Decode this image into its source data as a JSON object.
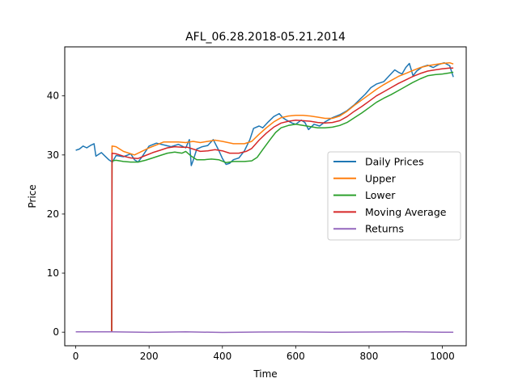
{
  "chart_data": {
    "type": "line",
    "title": "AFL_06.28.2018-05.21.2014",
    "xlabel": "Time",
    "ylabel": "Price",
    "xlim": [
      -30,
      1065
    ],
    "ylim": [
      -2.3,
      48.3
    ],
    "xticks": [
      0,
      200,
      400,
      600,
      800,
      1000
    ],
    "yticks": [
      0,
      10,
      20,
      30,
      40
    ],
    "grid": false,
    "legend_position": "center-right",
    "series": [
      {
        "name": "Daily Prices",
        "color": "#1f77b4",
        "points": [
          [
            0,
            30.8
          ],
          [
            10,
            31.0
          ],
          [
            20,
            31.5
          ],
          [
            30,
            31.2
          ],
          [
            40,
            31.6
          ],
          [
            50,
            31.9
          ],
          [
            55,
            29.8
          ],
          [
            70,
            30.4
          ],
          [
            80,
            29.8
          ],
          [
            90,
            29.2
          ],
          [
            100,
            28.8
          ],
          [
            110,
            29.9
          ],
          [
            130,
            29.7
          ],
          [
            150,
            30.2
          ],
          [
            160,
            29.2
          ],
          [
            170,
            28.8
          ],
          [
            180,
            29.6
          ],
          [
            200,
            31.5
          ],
          [
            220,
            32.0
          ],
          [
            240,
            31.7
          ],
          [
            260,
            31.4
          ],
          [
            280,
            31.8
          ],
          [
            300,
            31.2
          ],
          [
            310,
            32.6
          ],
          [
            315,
            28.2
          ],
          [
            320,
            29.0
          ],
          [
            330,
            31.0
          ],
          [
            345,
            31.4
          ],
          [
            360,
            31.6
          ],
          [
            375,
            32.6
          ],
          [
            390,
            30.8
          ],
          [
            400,
            29.4
          ],
          [
            410,
            28.4
          ],
          [
            420,
            28.6
          ],
          [
            430,
            29.2
          ],
          [
            445,
            29.5
          ],
          [
            460,
            30.7
          ],
          [
            475,
            32.6
          ],
          [
            485,
            34.5
          ],
          [
            500,
            34.9
          ],
          [
            510,
            34.6
          ],
          [
            525,
            35.6
          ],
          [
            540,
            36.5
          ],
          [
            555,
            37.0
          ],
          [
            565,
            36.3
          ],
          [
            575,
            35.9
          ],
          [
            590,
            35.4
          ],
          [
            600,
            35.2
          ],
          [
            615,
            35.9
          ],
          [
            625,
            35.5
          ],
          [
            635,
            34.3
          ],
          [
            650,
            35.2
          ],
          [
            665,
            34.9
          ],
          [
            680,
            35.6
          ],
          [
            700,
            36.3
          ],
          [
            720,
            36.8
          ],
          [
            740,
            37.5
          ],
          [
            760,
            38.5
          ],
          [
            775,
            39.4
          ],
          [
            790,
            40.3
          ],
          [
            805,
            41.4
          ],
          [
            820,
            42.0
          ],
          [
            840,
            42.4
          ],
          [
            855,
            43.4
          ],
          [
            870,
            44.4
          ],
          [
            880,
            44.0
          ],
          [
            890,
            43.7
          ],
          [
            900,
            44.8
          ],
          [
            910,
            45.5
          ],
          [
            920,
            43.4
          ],
          [
            930,
            44.2
          ],
          [
            945,
            44.9
          ],
          [
            960,
            45.2
          ],
          [
            975,
            44.8
          ],
          [
            990,
            45.3
          ],
          [
            1005,
            45.6
          ],
          [
            1020,
            45.1
          ],
          [
            1030,
            43.2
          ]
        ]
      },
      {
        "name": "Upper",
        "color": "#ff7f0e",
        "points": [
          [
            98,
            0.1
          ],
          [
            99,
            31.5
          ],
          [
            110,
            31.4
          ],
          [
            130,
            30.6
          ],
          [
            160,
            30.0
          ],
          [
            180,
            30.6
          ],
          [
            200,
            31.2
          ],
          [
            220,
            31.7
          ],
          [
            240,
            32.2
          ],
          [
            260,
            32.2
          ],
          [
            280,
            32.2
          ],
          [
            300,
            32.1
          ],
          [
            320,
            32.3
          ],
          [
            340,
            32.1
          ],
          [
            360,
            32.3
          ],
          [
            380,
            32.5
          ],
          [
            400,
            32.3
          ],
          [
            430,
            31.9
          ],
          [
            460,
            31.9
          ],
          [
            480,
            32.3
          ],
          [
            500,
            33.5
          ],
          [
            520,
            34.6
          ],
          [
            540,
            35.6
          ],
          [
            560,
            36.3
          ],
          [
            580,
            36.6
          ],
          [
            600,
            36.7
          ],
          [
            620,
            36.7
          ],
          [
            640,
            36.6
          ],
          [
            660,
            36.4
          ],
          [
            680,
            36.2
          ],
          [
            700,
            36.2
          ],
          [
            720,
            36.6
          ],
          [
            740,
            37.4
          ],
          [
            760,
            38.4
          ],
          [
            780,
            39.3
          ],
          [
            800,
            40.2
          ],
          [
            820,
            41.1
          ],
          [
            840,
            41.9
          ],
          [
            860,
            42.6
          ],
          [
            880,
            43.3
          ],
          [
            900,
            43.8
          ],
          [
            920,
            44.3
          ],
          [
            940,
            44.8
          ],
          [
            960,
            45.1
          ],
          [
            980,
            45.3
          ],
          [
            1000,
            45.5
          ],
          [
            1020,
            45.6
          ],
          [
            1030,
            45.4
          ]
        ]
      },
      {
        "name": "Lower",
        "color": "#2ca02c",
        "points": [
          [
            98,
            0.1
          ],
          [
            99,
            29.0
          ],
          [
            110,
            29.1
          ],
          [
            130,
            28.9
          ],
          [
            150,
            28.8
          ],
          [
            170,
            28.8
          ],
          [
            190,
            29.1
          ],
          [
            210,
            29.5
          ],
          [
            230,
            29.9
          ],
          [
            250,
            30.3
          ],
          [
            270,
            30.5
          ],
          [
            290,
            30.3
          ],
          [
            300,
            30.6
          ],
          [
            315,
            29.8
          ],
          [
            330,
            29.2
          ],
          [
            350,
            29.2
          ],
          [
            370,
            29.3
          ],
          [
            390,
            29.2
          ],
          [
            410,
            28.7
          ],
          [
            430,
            28.9
          ],
          [
            460,
            28.9
          ],
          [
            480,
            29.0
          ],
          [
            495,
            29.6
          ],
          [
            510,
            30.9
          ],
          [
            530,
            32.6
          ],
          [
            545,
            33.8
          ],
          [
            560,
            34.6
          ],
          [
            580,
            35.0
          ],
          [
            600,
            35.2
          ],
          [
            620,
            35.0
          ],
          [
            640,
            34.8
          ],
          [
            660,
            34.6
          ],
          [
            680,
            34.6
          ],
          [
            700,
            34.7
          ],
          [
            720,
            35.0
          ],
          [
            740,
            35.5
          ],
          [
            760,
            36.3
          ],
          [
            780,
            37.1
          ],
          [
            800,
            38.0
          ],
          [
            820,
            38.9
          ],
          [
            840,
            39.6
          ],
          [
            860,
            40.2
          ],
          [
            880,
            40.9
          ],
          [
            900,
            41.6
          ],
          [
            920,
            42.3
          ],
          [
            940,
            42.9
          ],
          [
            960,
            43.4
          ],
          [
            980,
            43.6
          ],
          [
            1000,
            43.7
          ],
          [
            1020,
            43.9
          ],
          [
            1030,
            44.0
          ]
        ]
      },
      {
        "name": "Moving Average",
        "color": "#d62728",
        "points": [
          [
            98,
            0.1
          ],
          [
            99,
            30.3
          ],
          [
            110,
            30.2
          ],
          [
            130,
            29.8
          ],
          [
            150,
            29.5
          ],
          [
            170,
            29.4
          ],
          [
            190,
            29.9
          ],
          [
            210,
            30.4
          ],
          [
            230,
            30.8
          ],
          [
            250,
            31.2
          ],
          [
            270,
            31.4
          ],
          [
            290,
            31.3
          ],
          [
            305,
            31.3
          ],
          [
            320,
            31.0
          ],
          [
            340,
            30.6
          ],
          [
            360,
            30.7
          ],
          [
            380,
            30.9
          ],
          [
            400,
            30.7
          ],
          [
            420,
            30.3
          ],
          [
            445,
            30.3
          ],
          [
            465,
            30.6
          ],
          [
            480,
            31.1
          ],
          [
            500,
            32.5
          ],
          [
            520,
            33.7
          ],
          [
            540,
            34.7
          ],
          [
            560,
            35.4
          ],
          [
            580,
            35.7
          ],
          [
            600,
            35.9
          ],
          [
            620,
            35.8
          ],
          [
            640,
            35.7
          ],
          [
            660,
            35.5
          ],
          [
            680,
            35.4
          ],
          [
            700,
            35.5
          ],
          [
            720,
            35.8
          ],
          [
            740,
            36.5
          ],
          [
            760,
            37.4
          ],
          [
            780,
            38.2
          ],
          [
            800,
            39.1
          ],
          [
            820,
            40.0
          ],
          [
            840,
            40.7
          ],
          [
            860,
            41.4
          ],
          [
            880,
            42.1
          ],
          [
            900,
            42.7
          ],
          [
            920,
            43.3
          ],
          [
            940,
            43.8
          ],
          [
            960,
            44.2
          ],
          [
            980,
            44.4
          ],
          [
            1000,
            44.6
          ],
          [
            1020,
            44.7
          ],
          [
            1030,
            44.7
          ]
        ]
      },
      {
        "name": "Returns",
        "color": "#9467bd",
        "points": [
          [
            0,
            0.05
          ],
          [
            100,
            0.05
          ],
          [
            200,
            -0.03
          ],
          [
            300,
            0.05
          ],
          [
            400,
            -0.04
          ],
          [
            500,
            0.03
          ],
          [
            600,
            0.04
          ],
          [
            700,
            0.0
          ],
          [
            800,
            0.02
          ],
          [
            900,
            0.05
          ],
          [
            1000,
            -0.02
          ],
          [
            1030,
            0.0
          ]
        ]
      }
    ]
  }
}
